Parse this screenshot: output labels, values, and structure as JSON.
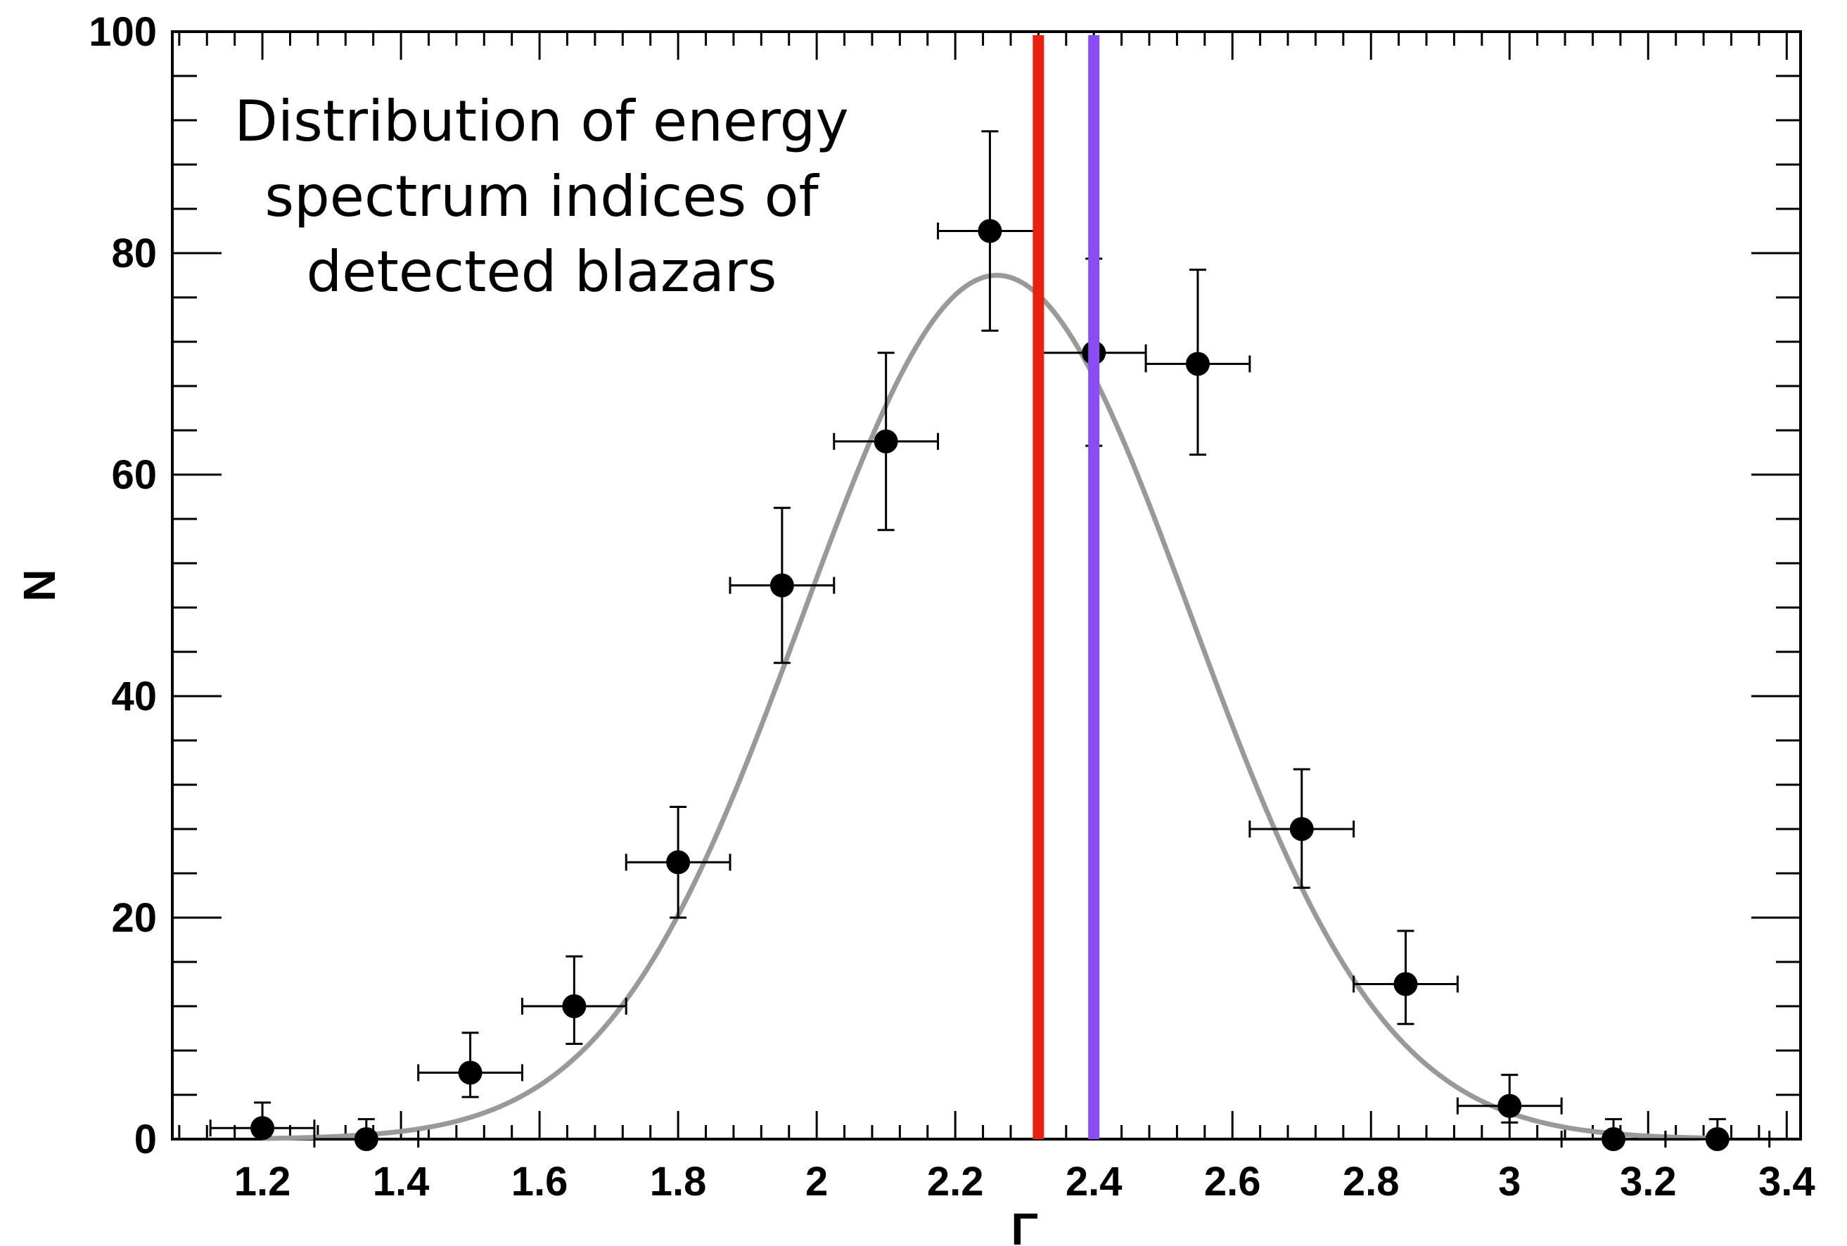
{
  "chart_data": {
    "type": "scatter",
    "title": "",
    "xlabel": "Γ",
    "ylabel": "N",
    "xlim": [
      1.07,
      3.42
    ],
    "ylim": [
      0,
      100
    ],
    "xticks": [
      1.2,
      1.4,
      1.6,
      1.8,
      2,
      2.2,
      2.4,
      2.6,
      2.8,
      3,
      3.2,
      3.4
    ],
    "xtick_labels": [
      "1.2",
      "1.4",
      "1.6",
      "1.8",
      "2",
      "2.2",
      "2.4",
      "2.6",
      "2.8",
      "3",
      "3.2",
      "3.4"
    ],
    "yticks": [
      0,
      20,
      40,
      60,
      80,
      100
    ],
    "ytick_labels": [
      "0",
      "20",
      "40",
      "60",
      "80",
      "100"
    ],
    "grid": false,
    "annotation_lines": [
      "Distribution of energy",
      "spectrum indices of",
      "detected blazars"
    ],
    "series": [
      {
        "kind": "points_with_errorbars",
        "color": "#000000",
        "points": [
          {
            "x": 1.2,
            "y": 1,
            "xerr": 0.075,
            "ylow": 0.3,
            "yhigh": 3.3
          },
          {
            "x": 1.35,
            "y": 0,
            "xerr": 0.075,
            "ylow": 0,
            "yhigh": 1.8
          },
          {
            "x": 1.5,
            "y": 6,
            "xerr": 0.075,
            "ylow": 3.8,
            "yhigh": 9.6
          },
          {
            "x": 1.65,
            "y": 12,
            "xerr": 0.075,
            "ylow": 8.6,
            "yhigh": 16.5
          },
          {
            "x": 1.8,
            "y": 25,
            "xerr": 0.075,
            "ylow": 20,
            "yhigh": 30
          },
          {
            "x": 1.95,
            "y": 50,
            "xerr": 0.075,
            "ylow": 43,
            "yhigh": 57
          },
          {
            "x": 2.1,
            "y": 63,
            "xerr": 0.075,
            "ylow": 55,
            "yhigh": 71
          },
          {
            "x": 2.25,
            "y": 82,
            "xerr": 0.075,
            "ylow": 73,
            "yhigh": 91
          },
          {
            "x": 2.4,
            "y": 71,
            "xerr": 0.075,
            "ylow": 62.6,
            "yhigh": 79.5
          },
          {
            "x": 2.55,
            "y": 70,
            "xerr": 0.075,
            "ylow": 61.8,
            "yhigh": 78.5
          },
          {
            "x": 2.7,
            "y": 28,
            "xerr": 0.075,
            "ylow": 22.7,
            "yhigh": 33.4
          },
          {
            "x": 2.85,
            "y": 14,
            "xerr": 0.075,
            "ylow": 10.4,
            "yhigh": 18.8
          },
          {
            "x": 3.0,
            "y": 3,
            "xerr": 0.075,
            "ylow": 1.5,
            "yhigh": 5.8
          },
          {
            "x": 3.15,
            "y": 0,
            "xerr": 0.075,
            "ylow": 0,
            "yhigh": 1.8
          },
          {
            "x": 3.3,
            "y": 0,
            "xerr": 0.075,
            "ylow": 0,
            "yhigh": 1.8
          }
        ]
      },
      {
        "kind": "gaussian_fit",
        "color": "#999999",
        "amplitude": 78,
        "mean": 2.26,
        "sigma": 0.28,
        "x_range": [
          1.2,
          3.3
        ]
      }
    ],
    "vertical_lines": [
      {
        "x": 2.32,
        "color": "#e8220e"
      },
      {
        "x": 2.4,
        "color": "#8a4df5"
      }
    ]
  }
}
